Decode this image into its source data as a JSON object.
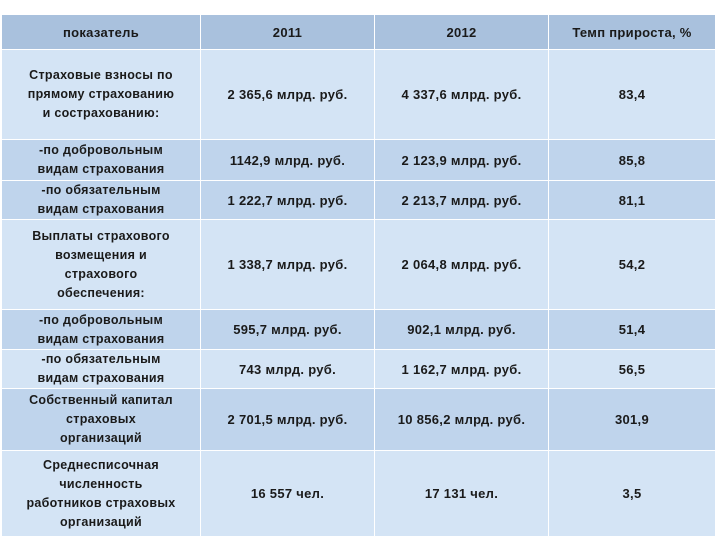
{
  "table": {
    "headers": [
      "показатель",
      "2011",
      "2012",
      "Темп прироста, %"
    ],
    "rows": [
      {
        "label": [
          "Страховые взносы по",
          "прямому страхованию",
          "и сострахованию:"
        ],
        "v2011": "2 365,6 млрд. руб.",
        "v2012": "4 337,6 млрд. руб.",
        "growth": "83,4"
      },
      {
        "label": [
          "-по добровольным",
          "видам страхования"
        ],
        "v2011": "1142,9 млрд. руб.",
        "v2012": "2 123,9 млрд. руб.",
        "growth": "85,8"
      },
      {
        "label": [
          "-по обязательным",
          "видам страхования"
        ],
        "v2011": "1 222,7 млрд. руб.",
        "v2012": "2 213,7 млрд. руб.",
        "growth": "81,1"
      },
      {
        "label": [
          "Выплаты страхового",
          "возмещения и",
          "страхового",
          "обеспечения:"
        ],
        "v2011": "1 338,7 млрд. руб.",
        "v2012": "2 064,8 млрд. руб.",
        "growth": "54,2"
      },
      {
        "label": [
          "-по добровольным",
          "видам страхования"
        ],
        "v2011": "595,7 млрд. руб.",
        "v2012": "902,1 млрд. руб.",
        "growth": "51,4"
      },
      {
        "label": [
          "-по обязательным",
          "видам страхования"
        ],
        "v2011": "743 млрд. руб.",
        "v2012": "1 162,7 млрд. руб.",
        "growth": "56,5"
      },
      {
        "label": [
          "Собственный капитал",
          "страховых",
          "организаций"
        ],
        "v2011": "2 701,5 млрд. руб.",
        "v2012": "10 856,2 млрд. руб.",
        "growth": "301,9"
      },
      {
        "label": [
          "Среднесписочная",
          "численность",
          "работников страховых",
          "организаций"
        ],
        "v2011": "16 557 чел.",
        "v2012": "17 131 чел.",
        "growth": "3,5"
      }
    ]
  },
  "colors": {
    "header_bg": "#a9c1dd",
    "row_light": "#d4e4f5",
    "row_dark": "#bfd4ec",
    "text": "#1a1a1a"
  }
}
